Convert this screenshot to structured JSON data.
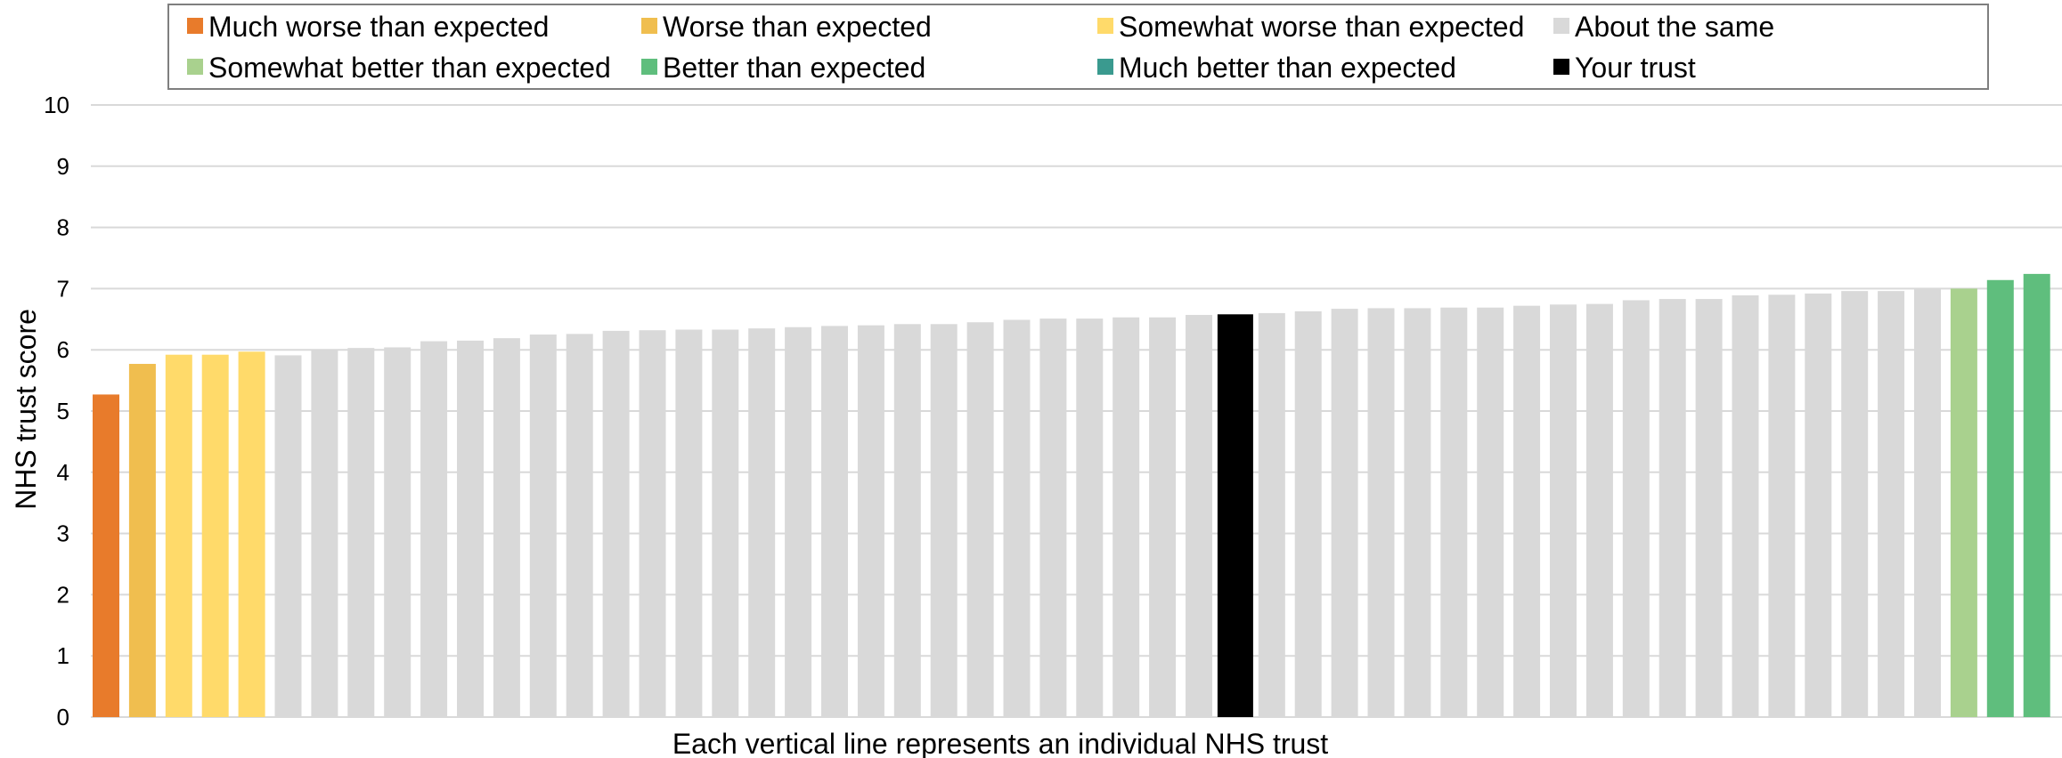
{
  "chart_data": {
    "type": "bar",
    "title": "",
    "xlabel": "Each vertical line represents an individual NHS trust",
    "ylabel": "NHS trust score",
    "ylim": [
      0,
      10
    ],
    "yticks": [
      0,
      1,
      2,
      3,
      4,
      5,
      6,
      7,
      8,
      9,
      10
    ],
    "grid": true,
    "legend_position": "top",
    "legend": [
      {
        "key": "much_worse",
        "label": "Much worse than expected",
        "color": "#E87B2B"
      },
      {
        "key": "worse",
        "label": "Worse than expected",
        "color": "#F0BE4F"
      },
      {
        "key": "somewhat_worse",
        "label": "Somewhat worse than expected",
        "color": "#FFDA6A"
      },
      {
        "key": "same",
        "label": "About the same",
        "color": "#D9D9D9"
      },
      {
        "key": "somewhat_better",
        "label": "Somewhat better than expected",
        "color": "#A9D18E"
      },
      {
        "key": "better",
        "label": "Better than expected",
        "color": "#5FBE7D"
      },
      {
        "key": "much_better",
        "label": "Much better than expected",
        "color": "#3A9A8F"
      },
      {
        "key": "your_trust",
        "label": "Your trust",
        "color": "#000000"
      }
    ],
    "bars": [
      {
        "value": 5.27,
        "group": "much_worse"
      },
      {
        "value": 5.77,
        "group": "worse"
      },
      {
        "value": 5.92,
        "group": "somewhat_worse"
      },
      {
        "value": 5.92,
        "group": "somewhat_worse"
      },
      {
        "value": 5.97,
        "group": "somewhat_worse"
      },
      {
        "value": 5.91,
        "group": "same"
      },
      {
        "value": 6.01,
        "group": "same"
      },
      {
        "value": 6.03,
        "group": "same"
      },
      {
        "value": 6.04,
        "group": "same"
      },
      {
        "value": 6.14,
        "group": "same"
      },
      {
        "value": 6.15,
        "group": "same"
      },
      {
        "value": 6.19,
        "group": "same"
      },
      {
        "value": 6.25,
        "group": "same"
      },
      {
        "value": 6.26,
        "group": "same"
      },
      {
        "value": 6.31,
        "group": "same"
      },
      {
        "value": 6.32,
        "group": "same"
      },
      {
        "value": 6.33,
        "group": "same"
      },
      {
        "value": 6.33,
        "group": "same"
      },
      {
        "value": 6.35,
        "group": "same"
      },
      {
        "value": 6.37,
        "group": "same"
      },
      {
        "value": 6.39,
        "group": "same"
      },
      {
        "value": 6.4,
        "group": "same"
      },
      {
        "value": 6.42,
        "group": "same"
      },
      {
        "value": 6.42,
        "group": "same"
      },
      {
        "value": 6.45,
        "group": "same"
      },
      {
        "value": 6.49,
        "group": "same"
      },
      {
        "value": 6.51,
        "group": "same"
      },
      {
        "value": 6.51,
        "group": "same"
      },
      {
        "value": 6.53,
        "group": "same"
      },
      {
        "value": 6.53,
        "group": "same"
      },
      {
        "value": 6.57,
        "group": "same"
      },
      {
        "value": 6.58,
        "group": "your_trust"
      },
      {
        "value": 6.6,
        "group": "same"
      },
      {
        "value": 6.63,
        "group": "same"
      },
      {
        "value": 6.67,
        "group": "same"
      },
      {
        "value": 6.68,
        "group": "same"
      },
      {
        "value": 6.68,
        "group": "same"
      },
      {
        "value": 6.69,
        "group": "same"
      },
      {
        "value": 6.69,
        "group": "same"
      },
      {
        "value": 6.72,
        "group": "same"
      },
      {
        "value": 6.74,
        "group": "same"
      },
      {
        "value": 6.75,
        "group": "same"
      },
      {
        "value": 6.81,
        "group": "same"
      },
      {
        "value": 6.83,
        "group": "same"
      },
      {
        "value": 6.83,
        "group": "same"
      },
      {
        "value": 6.89,
        "group": "same"
      },
      {
        "value": 6.9,
        "group": "same"
      },
      {
        "value": 6.92,
        "group": "same"
      },
      {
        "value": 6.96,
        "group": "same"
      },
      {
        "value": 6.96,
        "group": "same"
      },
      {
        "value": 7.0,
        "group": "same"
      },
      {
        "value": 7.0,
        "group": "somewhat_better"
      },
      {
        "value": 7.14,
        "group": "better"
      },
      {
        "value": 7.24,
        "group": "better"
      }
    ]
  }
}
